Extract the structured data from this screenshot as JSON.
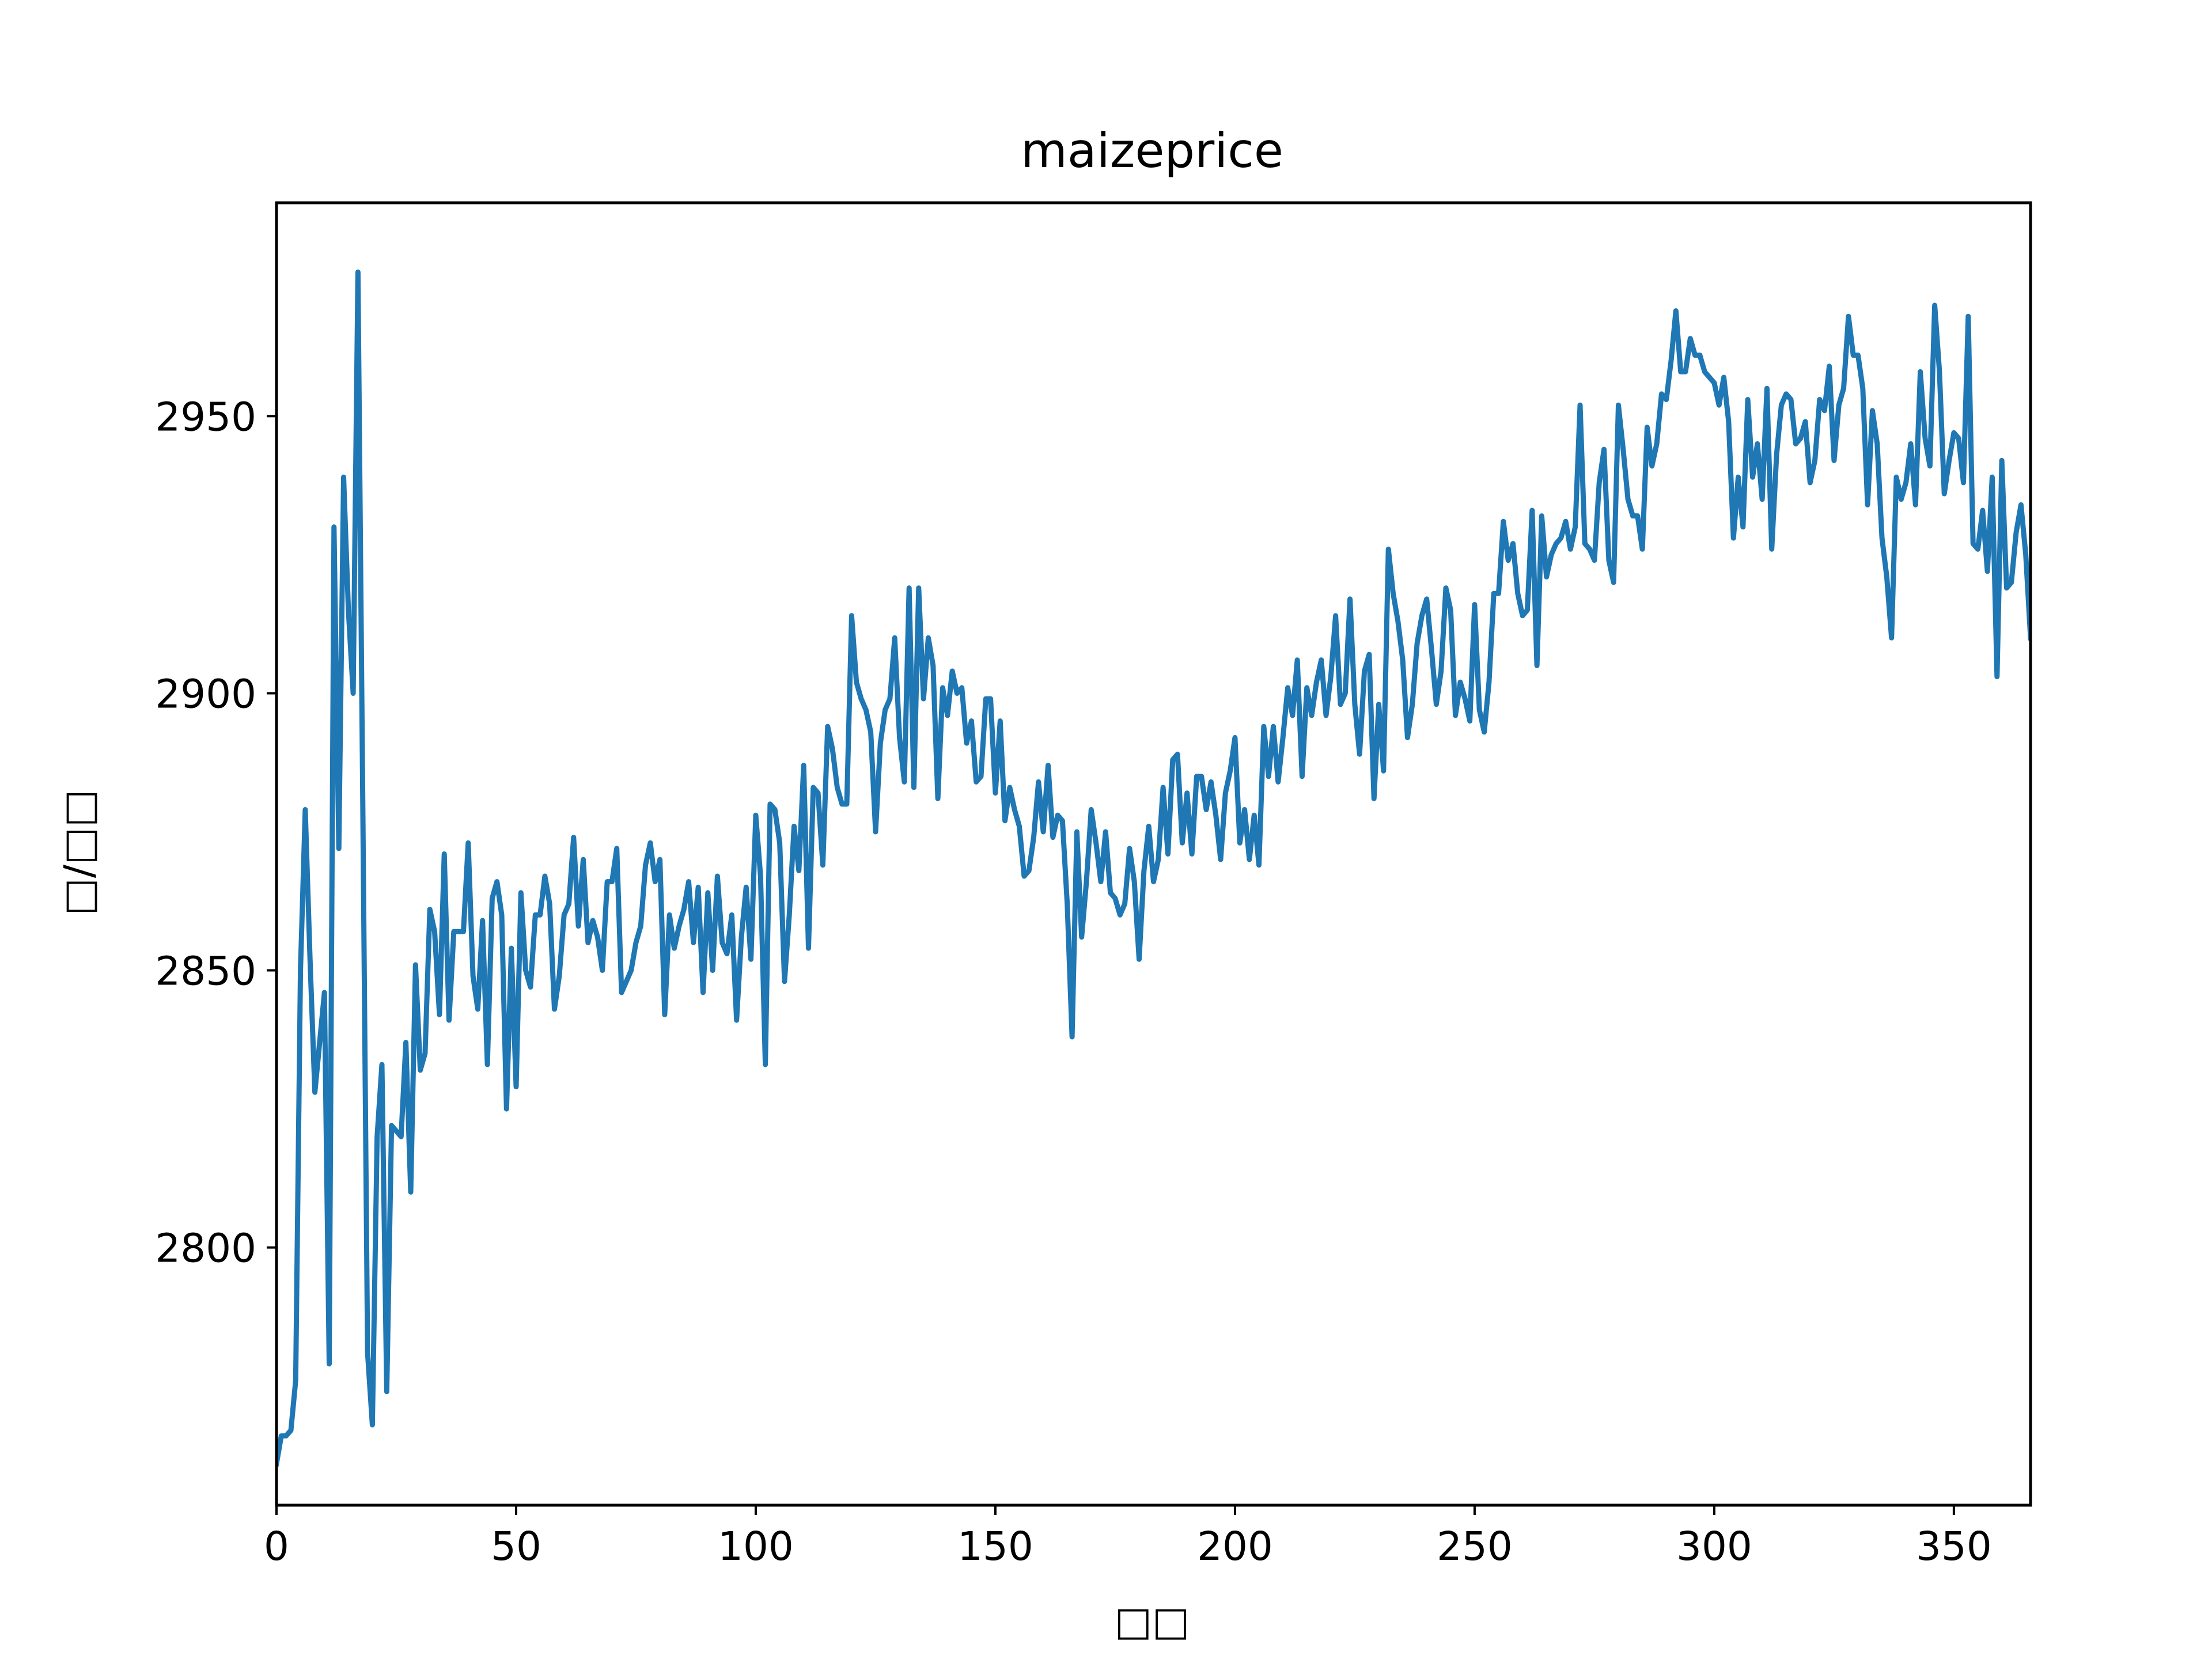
{
  "chart_data": {
    "type": "line",
    "title": "maizeprice",
    "xlabel": "□□",
    "ylabel": "□/□□",
    "xlim": [
      0,
      366
    ],
    "ylim": [
      2753.5,
      2988.5
    ],
    "xticks": [
      0,
      50,
      100,
      150,
      200,
      250,
      300,
      350
    ],
    "yticks": [
      2800,
      2850,
      2900,
      2950
    ],
    "grid": false,
    "legend": "none",
    "line_color": "#1f77b4",
    "series": [
      {
        "values": [
          2761,
          2766,
          2766,
          2767,
          2776,
          2850,
          2879,
          2852,
          2828,
          2837,
          2846,
          2779,
          2930,
          2872,
          2939,
          2915,
          2900,
          2976,
          2880,
          2781,
          2768,
          2820,
          2833,
          2774,
          2822,
          2821,
          2820,
          2837,
          2810,
          2851,
          2832,
          2835,
          2861,
          2857,
          2842,
          2871,
          2841,
          2857,
          2857,
          2857,
          2873,
          2849,
          2843,
          2859,
          2833,
          2863,
          2866,
          2860,
          2825,
          2854,
          2829,
          2864,
          2850,
          2847,
          2860,
          2860,
          2867,
          2862,
          2843,
          2849,
          2860,
          2862,
          2874,
          2858,
          2870,
          2855,
          2859,
          2856,
          2850,
          2866,
          2866,
          2872,
          2846,
          2848,
          2850,
          2855,
          2858,
          2869,
          2873,
          2866,
          2870,
          2842,
          2860,
          2854,
          2858,
          2861,
          2866,
          2855,
          2865,
          2846,
          2864,
          2850,
          2867,
          2855,
          2853,
          2860,
          2841,
          2856,
          2865,
          2852,
          2878,
          2867,
          2833,
          2880,
          2879,
          2873,
          2848,
          2860,
          2876,
          2868,
          2887,
          2854,
          2883,
          2882,
          2869,
          2894,
          2890,
          2883,
          2880,
          2880,
          2914,
          2902,
          2899,
          2897,
          2893,
          2875,
          2891,
          2897,
          2899,
          2910,
          2892,
          2884,
          2919,
          2883,
          2919,
          2899,
          2910,
          2905,
          2881,
          2901,
          2896,
          2904,
          2900,
          2901,
          2891,
          2895,
          2884,
          2885,
          2899,
          2899,
          2882,
          2895,
          2877,
          2883,
          2879,
          2876,
          2867,
          2868,
          2874,
          2884,
          2875,
          2887,
          2874,
          2878,
          2877,
          2862,
          2838,
          2875,
          2856,
          2866,
          2879,
          2873,
          2866,
          2875,
          2864,
          2863,
          2860,
          2862,
          2872,
          2866,
          2852,
          2868,
          2876,
          2866,
          2870,
          2883,
          2871,
          2888,
          2889,
          2873,
          2882,
          2871,
          2885,
          2885,
          2879,
          2884,
          2878,
          2870,
          2882,
          2886,
          2892,
          2873,
          2879,
          2870,
          2878,
          2869,
          2894,
          2885,
          2894,
          2884,
          2892,
          2901,
          2896,
          2906,
          2885,
          2901,
          2896,
          2902,
          2906,
          2896,
          2903,
          2914,
          2898,
          2900,
          2917,
          2898,
          2889,
          2904,
          2907,
          2881,
          2898,
          2886,
          2926,
          2918,
          2913,
          2906,
          2892,
          2898,
          2909,
          2914,
          2917,
          2908,
          2898,
          2904,
          2919,
          2915,
          2896,
          2902,
          2899,
          2895,
          2916,
          2897,
          2893,
          2902,
          2918,
          2918,
          2931,
          2924,
          2927,
          2918,
          2914,
          2915,
          2933,
          2905,
          2932,
          2921,
          2925,
          2927,
          2928,
          2931,
          2926,
          2930,
          2952,
          2927,
          2926,
          2924,
          2938,
          2944,
          2924,
          2920,
          2952,
          2944,
          2935,
          2932,
          2932,
          2926,
          2948,
          2941,
          2945,
          2954,
          2953,
          2960,
          2969,
          2958,
          2958,
          2964,
          2961,
          2961,
          2958,
          2957,
          2956,
          2952,
          2957,
          2949,
          2928,
          2939,
          2930,
          2953,
          2939,
          2945,
          2935,
          2955,
          2926,
          2943,
          2952,
          2954,
          2953,
          2945,
          2946,
          2949,
          2938,
          2942,
          2953,
          2951,
          2959,
          2942,
          2952,
          2955,
          2968,
          2961,
          2961,
          2955,
          2934,
          2951,
          2945,
          2928,
          2921,
          2910,
          2939,
          2935,
          2938,
          2945,
          2934,
          2958,
          2946,
          2941,
          2970,
          2958,
          2936,
          2942,
          2947,
          2946,
          2938,
          2968,
          2927,
          2926,
          2933,
          2922,
          2939,
          2903,
          2942,
          2919,
          2920,
          2929,
          2934,
          2925,
          2910
        ]
      }
    ]
  }
}
